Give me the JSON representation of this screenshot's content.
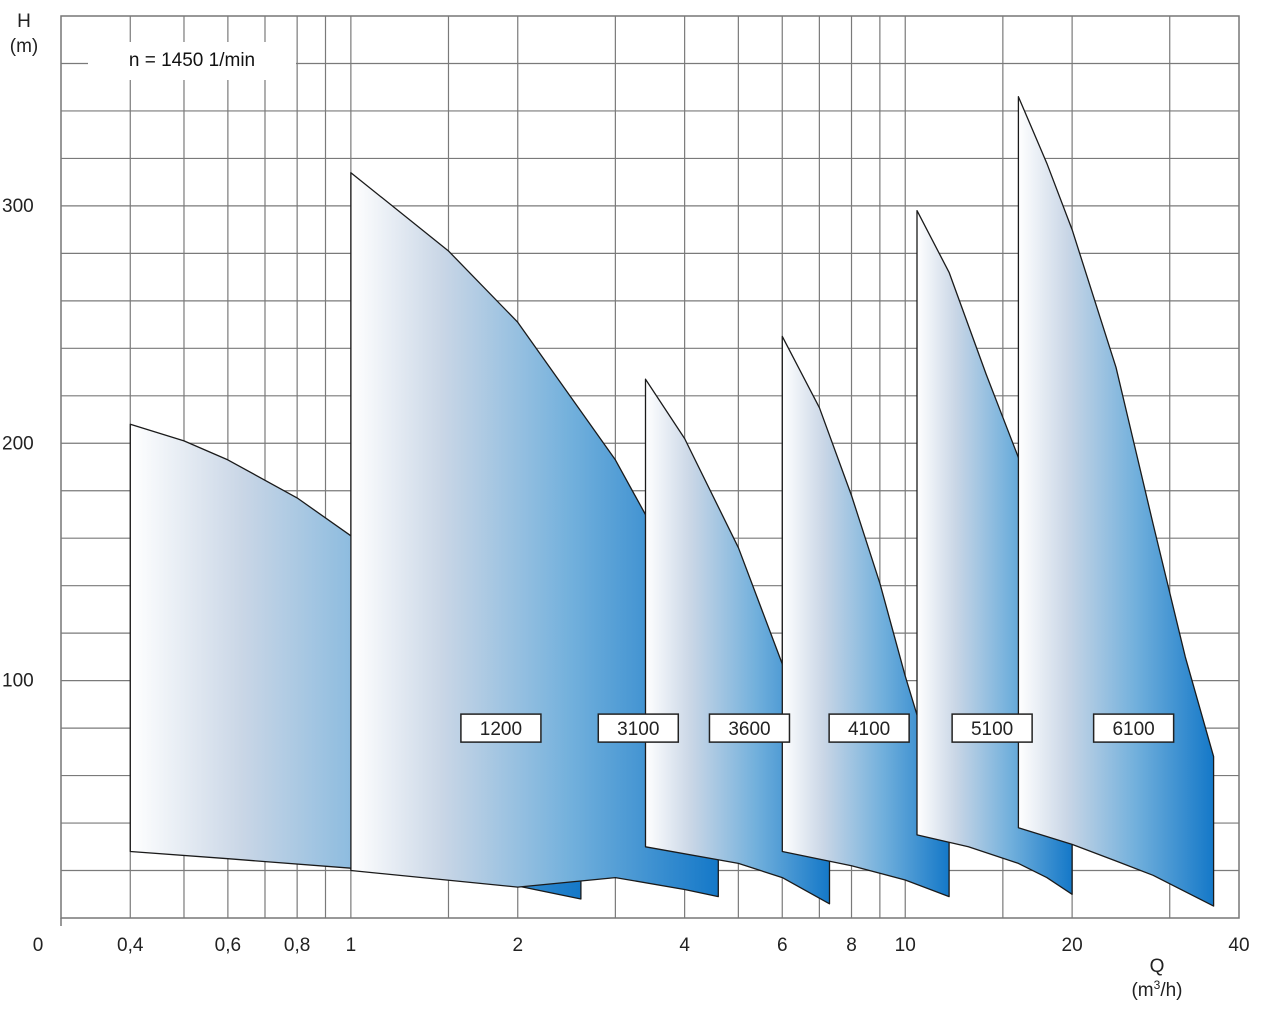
{
  "chart_data": {
    "type": "area",
    "note_label": "n = 1450 1/min",
    "y_axis": {
      "title": "H",
      "unit": "(m)",
      "ticks": [
        0,
        100,
        200,
        300
      ],
      "range": [
        0,
        380
      ]
    },
    "x_axis": {
      "title": "Q",
      "unit_prefix": "(m",
      "unit_sup": "3",
      "unit_suffix": "/h)",
      "scale": "log",
      "range": [
        0.3,
        40
      ],
      "tick_labels": [
        "0",
        "0,4",
        "0,6",
        "0,8",
        "1",
        "2",
        "4",
        "6",
        "8",
        "10",
        "20",
        "40"
      ],
      "tick_values": [
        null,
        0.4,
        0.6,
        0.8,
        1,
        2,
        4,
        6,
        8,
        10,
        20,
        40
      ]
    },
    "grid": true,
    "series": [
      {
        "name": "1200",
        "color": "#1478c8",
        "top": [
          [
            0.4,
            208
          ],
          [
            0.5,
            201
          ],
          [
            0.6,
            193
          ],
          [
            0.8,
            177
          ],
          [
            1,
            161
          ],
          [
            1.5,
            126
          ],
          [
            2,
            91
          ],
          [
            2.6,
            63
          ]
        ],
        "bottom": [
          [
            0.4,
            28
          ],
          [
            0.6,
            25
          ],
          [
            1,
            21
          ],
          [
            1.5,
            17
          ],
          [
            2,
            13.5
          ],
          [
            2.6,
            8
          ]
        ]
      },
      {
        "name": "3100",
        "color": "#1478c8",
        "top": [
          [
            1,
            314
          ],
          [
            1.5,
            281
          ],
          [
            2,
            251
          ],
          [
            3,
            193
          ],
          [
            4,
            140
          ],
          [
            4.6,
            96
          ]
        ],
        "bottom": [
          [
            1,
            20
          ],
          [
            2,
            13
          ],
          [
            3,
            17
          ],
          [
            4,
            12
          ],
          [
            4.6,
            9
          ]
        ]
      },
      {
        "name": "3600",
        "color": "#1478c8",
        "top": [
          [
            3.4,
            227
          ],
          [
            4,
            202
          ],
          [
            5,
            156
          ],
          [
            6,
            107
          ],
          [
            6.8,
            64
          ],
          [
            7.3,
            47
          ]
        ],
        "bottom": [
          [
            3.4,
            30
          ],
          [
            5,
            23
          ],
          [
            6,
            17
          ],
          [
            7.3,
            6
          ]
        ]
      },
      {
        "name": "4100",
        "color": "#1478c8",
        "top": [
          [
            6,
            245
          ],
          [
            7,
            215
          ],
          [
            8,
            178
          ],
          [
            9,
            141
          ],
          [
            10,
            102
          ],
          [
            11,
            70
          ],
          [
            12,
            54
          ]
        ],
        "bottom": [
          [
            6,
            28
          ],
          [
            8,
            22
          ],
          [
            10,
            16
          ],
          [
            12,
            9
          ]
        ]
      },
      {
        "name": "5100",
        "color": "#1478c8",
        "top": [
          [
            10.5,
            298
          ],
          [
            12,
            272
          ],
          [
            14,
            229
          ],
          [
            16,
            194
          ],
          [
            18,
            153
          ],
          [
            20,
            110
          ]
        ],
        "bottom": [
          [
            10.5,
            35
          ],
          [
            13,
            30
          ],
          [
            16,
            23
          ],
          [
            18,
            17
          ],
          [
            20,
            10
          ]
        ]
      },
      {
        "name": "6100",
        "color": "#1478c8",
        "top": [
          [
            16,
            346
          ],
          [
            18,
            318
          ],
          [
            20,
            290
          ],
          [
            24,
            232
          ],
          [
            28,
            166
          ],
          [
            32,
            110
          ],
          [
            36,
            68
          ]
        ],
        "bottom": [
          [
            16,
            38
          ],
          [
            20,
            31
          ],
          [
            24,
            24
          ],
          [
            28,
            18
          ],
          [
            36,
            5
          ]
        ]
      }
    ]
  }
}
